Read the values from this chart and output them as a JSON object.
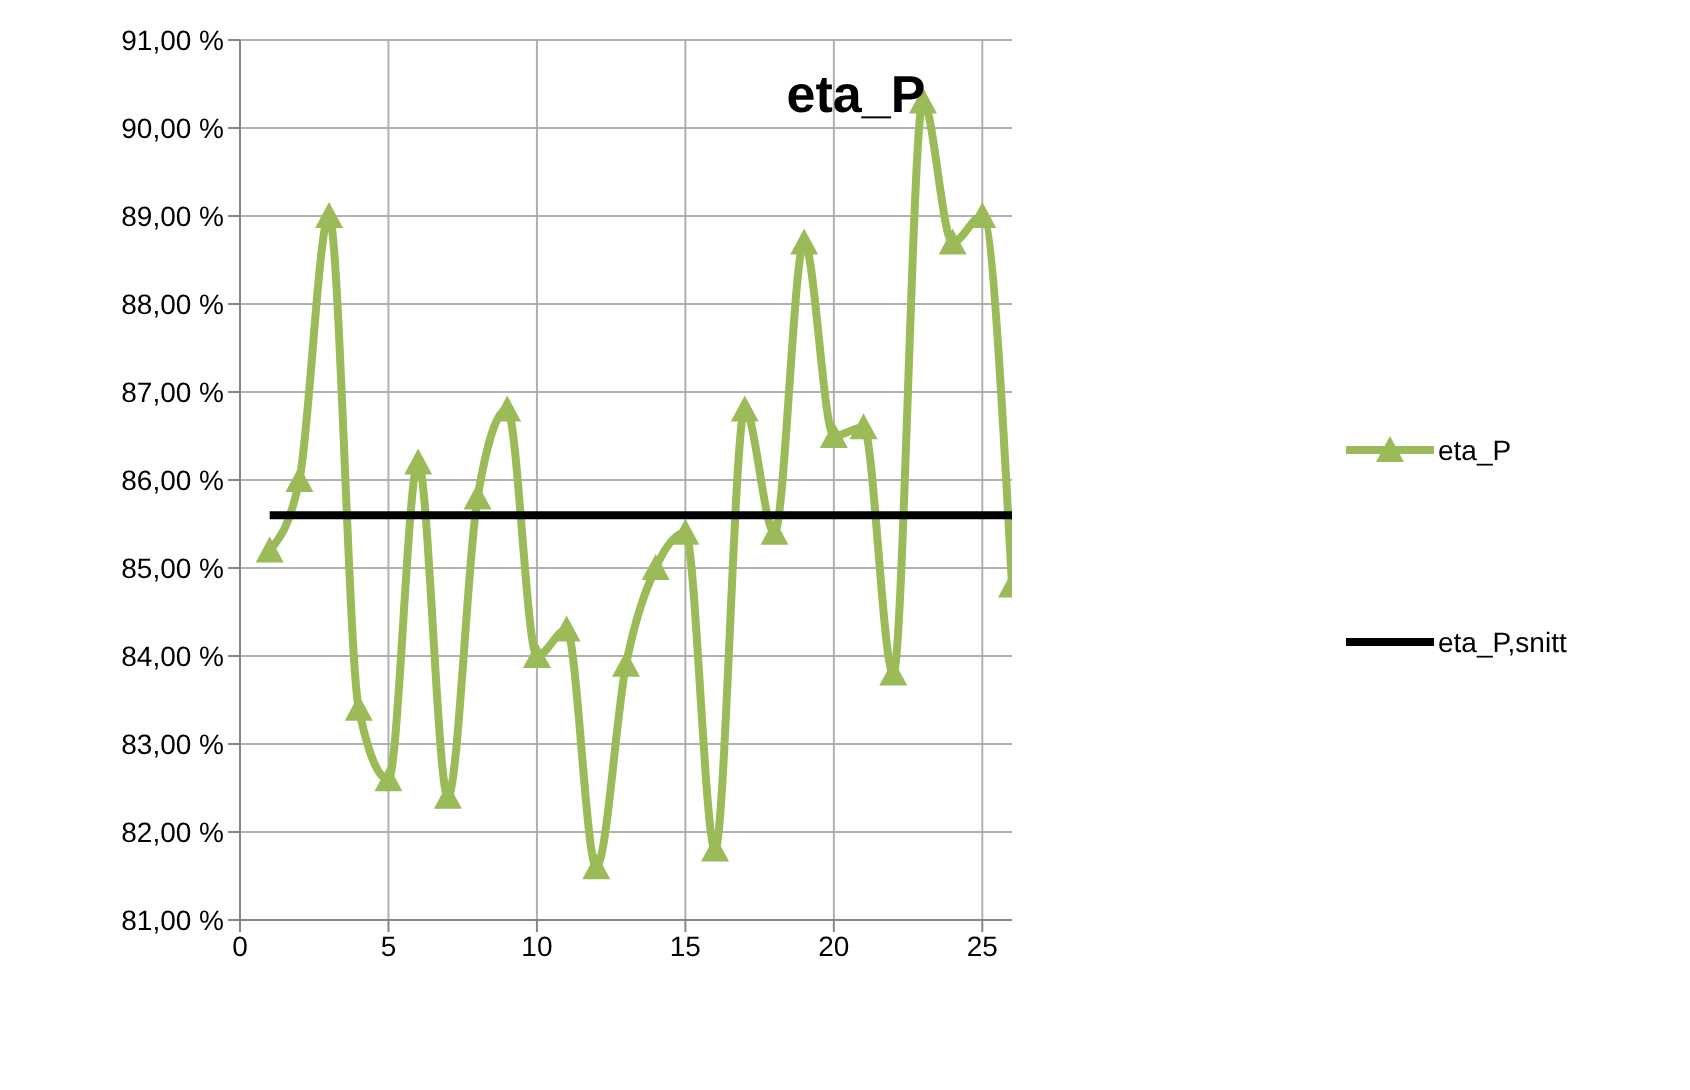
{
  "chart_data": {
    "type": "line",
    "title": "eta_P",
    "x": [
      1,
      2,
      3,
      4,
      5,
      6,
      7,
      8,
      9,
      10,
      11,
      12,
      13,
      14,
      15,
      16,
      17,
      18,
      19,
      20,
      21,
      22,
      23,
      24,
      25,
      26
    ],
    "series": [
      {
        "name": "eta_P",
        "color": "#9bbb59",
        "marker": "triangle",
        "values": [
          85.2,
          86.0,
          89.0,
          83.4,
          82.6,
          86.2,
          82.4,
          85.8,
          86.8,
          84.0,
          84.3,
          81.6,
          83.9,
          85.0,
          85.4,
          81.8,
          86.8,
          85.4,
          88.7,
          86.5,
          86.6,
          83.8,
          90.3,
          88.7,
          89.0,
          84.8
        ]
      },
      {
        "name": "eta_P,snitt",
        "color": "#000000",
        "marker": "none",
        "x": [
          1,
          26
        ],
        "values": [
          85.6,
          85.6
        ]
      }
    ],
    "xlim": [
      0,
      26
    ],
    "xticks": [
      0,
      5,
      10,
      15,
      20,
      25
    ],
    "ylim": [
      81,
      91
    ],
    "yticks": [
      {
        "value": 81,
        "label": "81,00 %"
      },
      {
        "value": 82,
        "label": "82,00 %"
      },
      {
        "value": 83,
        "label": "83,00 %"
      },
      {
        "value": 84,
        "label": "84,00 %"
      },
      {
        "value": 85,
        "label": "85,00 %"
      },
      {
        "value": 86,
        "label": "86,00 %"
      },
      {
        "value": 87,
        "label": "87,00 %"
      },
      {
        "value": 88,
        "label": "88,00 %"
      },
      {
        "value": 89,
        "label": "89,00 %"
      },
      {
        "value": 90,
        "label": "90,00 %"
      },
      {
        "value": 91,
        "label": "91,00 %"
      }
    ],
    "grid": true,
    "legend": "right",
    "line_style": "solid"
  }
}
